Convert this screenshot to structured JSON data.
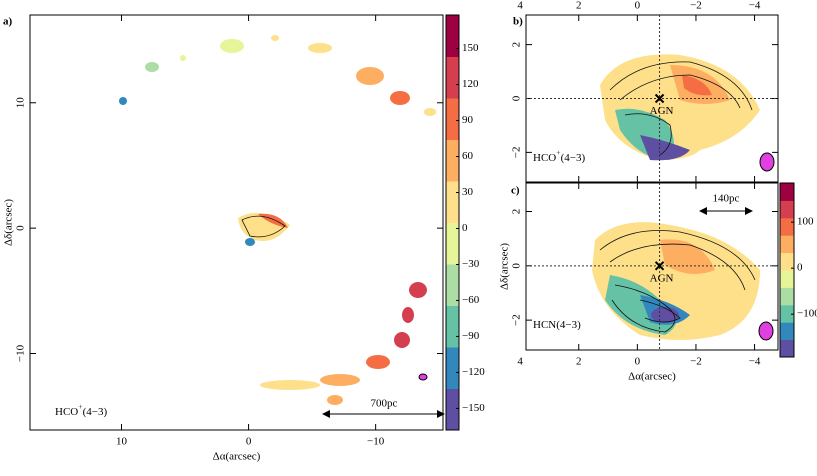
{
  "chart_data": [
    {
      "type": "velocity-map",
      "panel": "a)",
      "xlabel": "Δα(arcsec)",
      "ylabel": "Δδ(arcsec)",
      "xlim": [
        17.2,
        -15.3
      ],
      "ylim": [
        -16.1,
        17.0
      ],
      "xticks": [
        10,
        0,
        {
          "value": -10,
          "label": "−10"
        }
      ],
      "yticks": [
        10,
        0,
        {
          "value": -10,
          "label": "−10"
        }
      ],
      "line_label": {
        "base": "HCO",
        "sup": "+",
        "tail": "(4−3)"
      },
      "scale_bar": "700pc",
      "colormap": [
        "#5e4fa2",
        "#3288bd",
        "#66c2a5",
        "#abdda4",
        "#e6f598",
        "#fee08b",
        "#fdae61",
        "#f46d43",
        "#d53e4f",
        "#9e0142"
      ],
      "clim": [
        -168,
        178
      ],
      "cticks": [
        {
          "value": -150,
          "label": "−150"
        },
        {
          "value": -120,
          "label": "−120"
        },
        {
          "value": -90,
          "label": "−90"
        },
        {
          "value": -60,
          "label": "−60"
        },
        {
          "value": -30,
          "label": "−30"
        },
        0,
        30,
        60,
        90,
        120,
        150
      ]
    },
    {
      "type": "velocity-map",
      "panel": "b)",
      "annotation": "AGN",
      "xlim": [
        3.8,
        -4.8
      ],
      "ylim": [
        -3.1,
        3.1
      ],
      "xticks": [
        4,
        2,
        0,
        {
          "value": -2,
          "label": "−2"
        },
        {
          "value": -4,
          "label": "−4"
        }
      ],
      "yticks": [
        2,
        0,
        {
          "value": -2,
          "label": "−2"
        }
      ],
      "line_label": {
        "base": "HCO",
        "sup": "+",
        "tail": "(4−3)"
      }
    },
    {
      "type": "velocity-map",
      "panel": "c)",
      "xlabel": "Δα(arcsec)",
      "ylabel": "Δδ(arcsec)",
      "annotation": "AGN",
      "xlim": [
        3.8,
        -4.8
      ],
      "ylim": [
        -3.1,
        3.05
      ],
      "xticks": [
        4,
        2,
        0,
        {
          "value": -2,
          "label": "−2"
        },
        {
          "value": -4,
          "label": "−4"
        }
      ],
      "yticks": [
        2,
        0,
        {
          "value": -2,
          "label": "−2"
        }
      ],
      "line_label": {
        "base": "HCN",
        "tail": "(4−3)"
      },
      "scale_bar": "140pc",
      "colormap": [
        "#5e4fa2",
        "#3288bd",
        "#66c2a5",
        "#abdda4",
        "#e6f598",
        "#fee08b",
        "#fdae61",
        "#f46d43",
        "#d53e4f",
        "#9e0142"
      ],
      "clim": [
        -193,
        185
      ],
      "cticks": [
        100,
        0,
        {
          "value": -100,
          "label": "−100"
        }
      ]
    }
  ]
}
